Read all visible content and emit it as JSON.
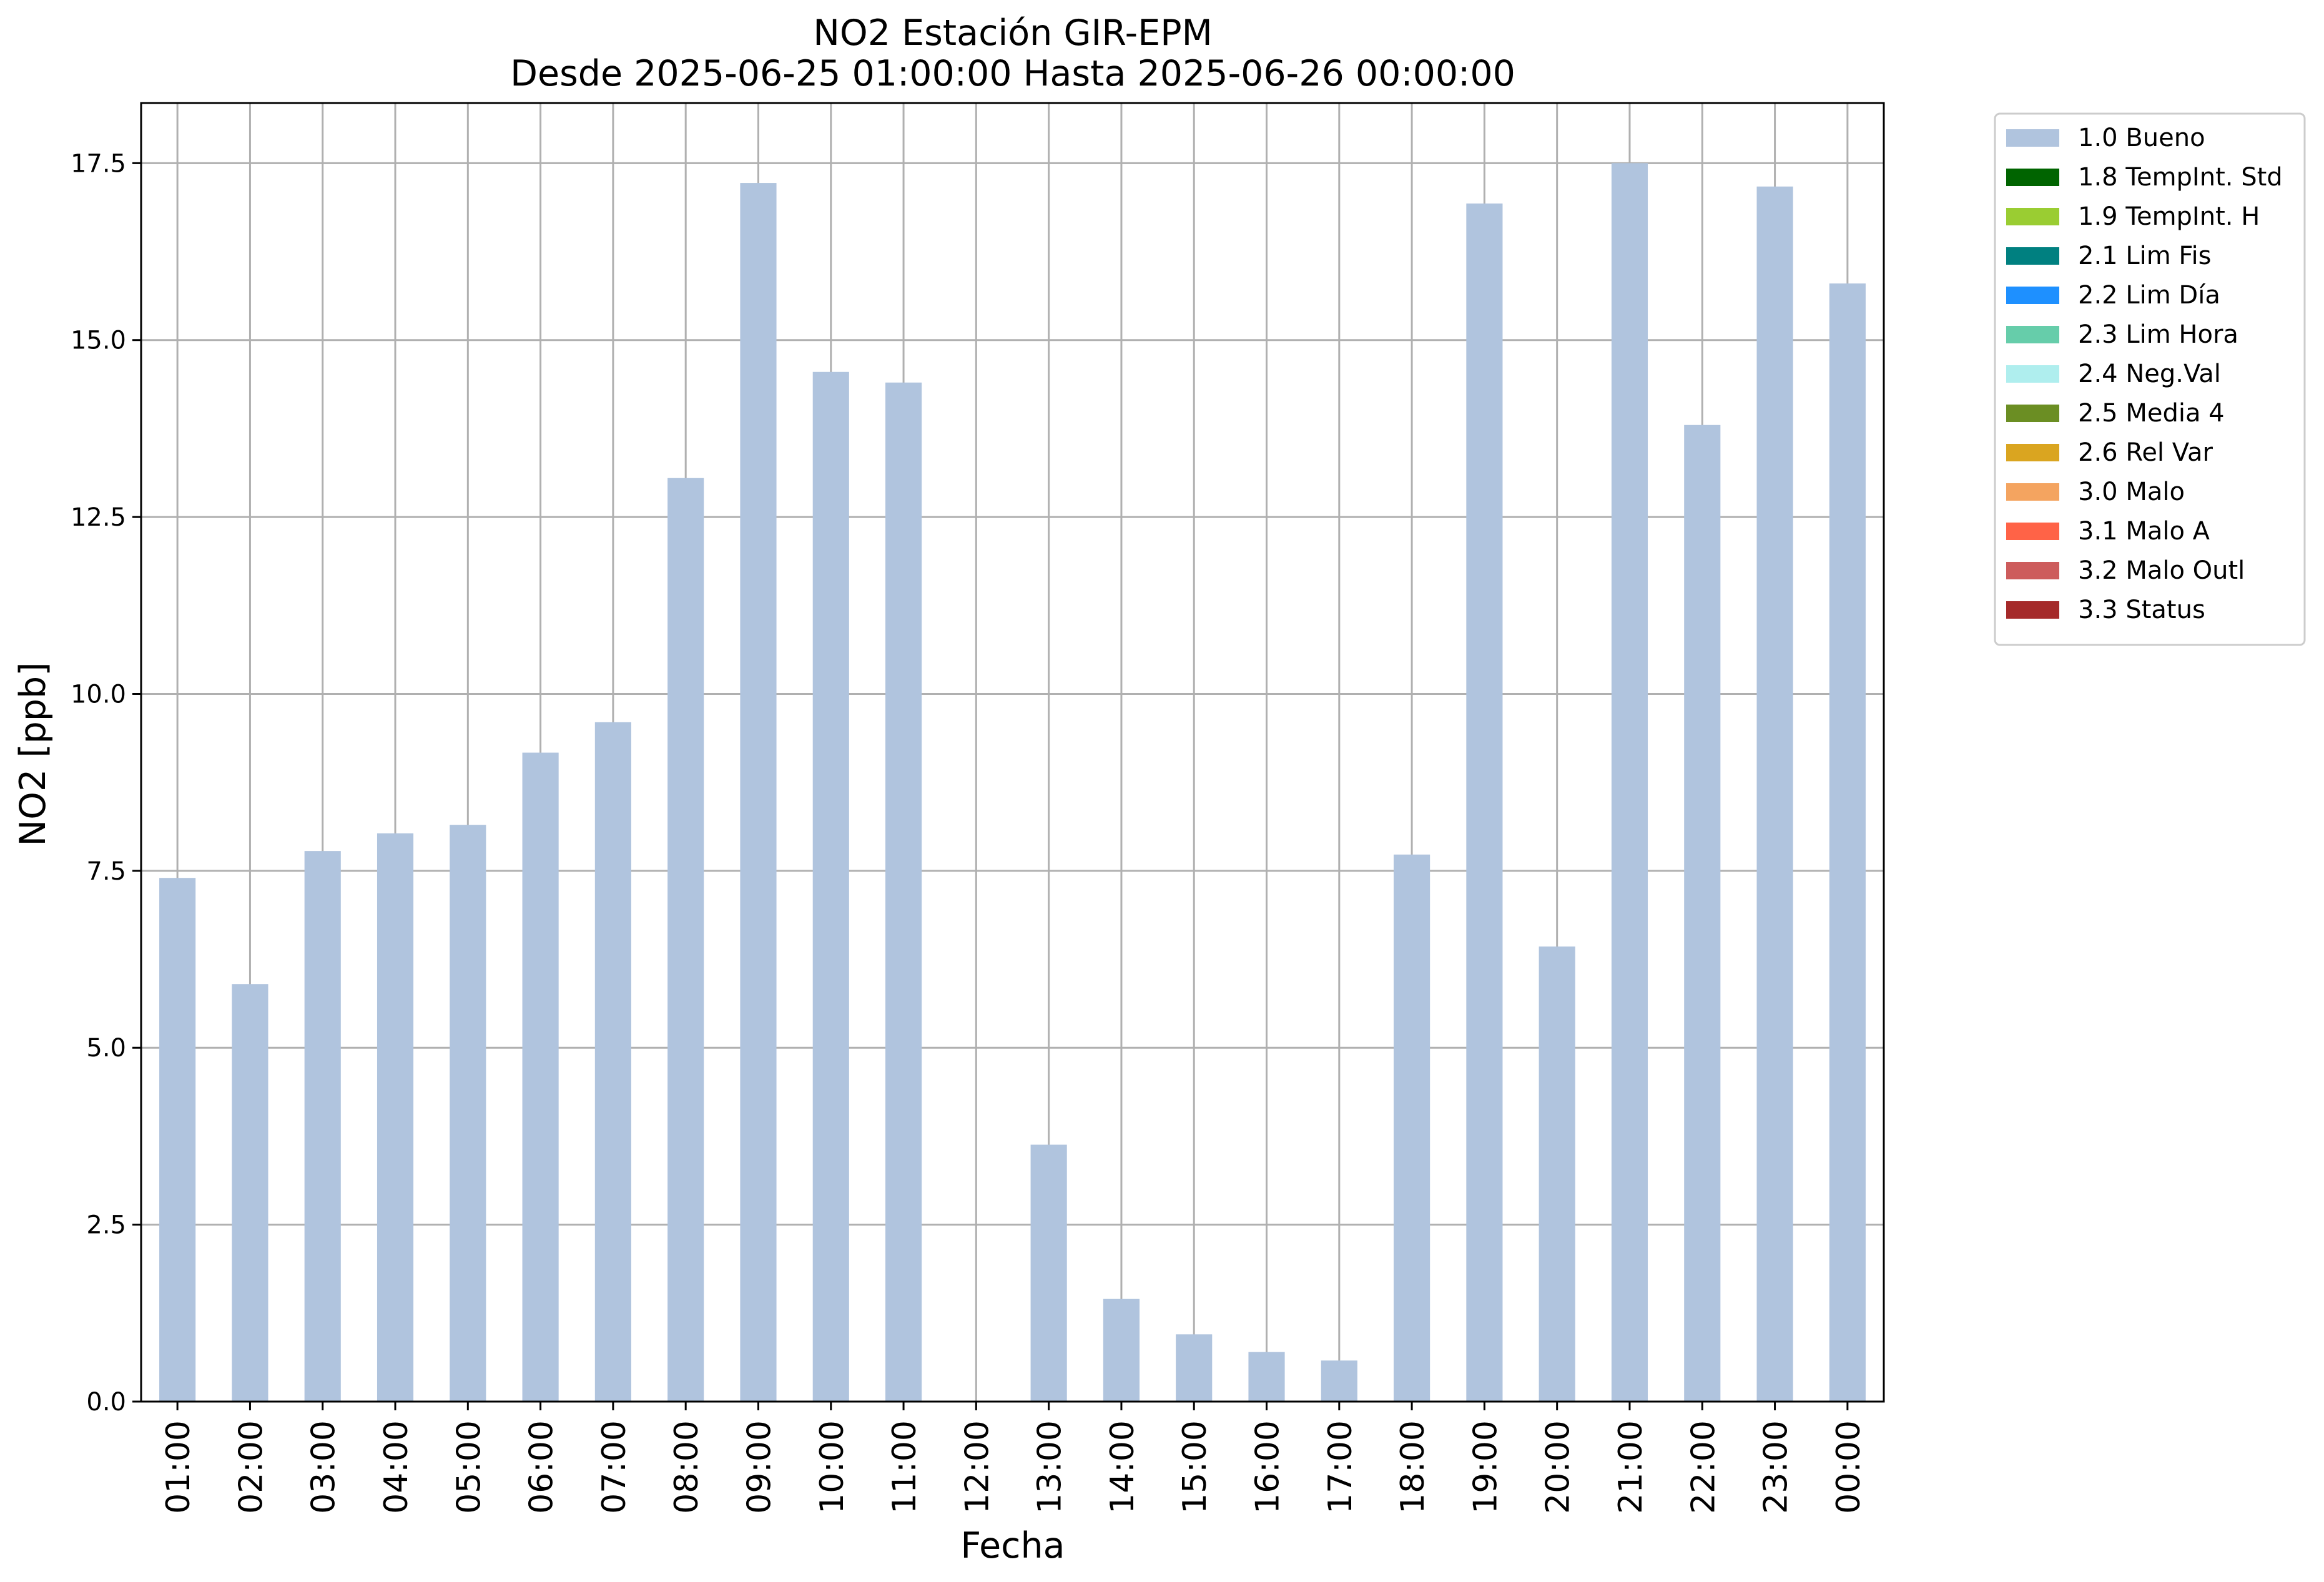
{
  "chart_data": {
    "type": "bar",
    "title": "NO2 Estación GIR-EPM",
    "subtitle": "Desde 2025-06-25 01:00:00 Hasta 2025-06-26 00:00:00",
    "xlabel": "Fecha",
    "ylabel": "NO2 [ppb]",
    "ylim": [
      0,
      18.35
    ],
    "yticks": [
      "0.0",
      "2.5",
      "5.0",
      "7.5",
      "10.0",
      "12.5",
      "15.0",
      "17.5"
    ],
    "grid": true,
    "legend_position": "outside-top-right",
    "categories": [
      "01:00",
      "02:00",
      "03:00",
      "04:00",
      "05:00",
      "06:00",
      "07:00",
      "08:00",
      "09:00",
      "10:00",
      "11:00",
      "12:00",
      "13:00",
      "14:00",
      "15:00",
      "16:00",
      "17:00",
      "18:00",
      "19:00",
      "20:00",
      "21:00",
      "22:00",
      "23:00",
      "00:00"
    ],
    "series": [
      {
        "name": "1.0 Bueno",
        "color": "#b0c4de",
        "values": [
          7.4,
          5.9,
          7.78,
          8.03,
          8.15,
          9.17,
          9.6,
          13.05,
          17.22,
          14.55,
          14.4,
          null,
          3.63,
          1.45,
          0.95,
          0.7,
          0.58,
          7.73,
          16.93,
          6.43,
          17.5,
          13.8,
          17.17,
          15.8
        ]
      }
    ],
    "legend": [
      {
        "label": "1.0 Bueno",
        "color": "#b0c4de"
      },
      {
        "label": "1.8 TempInt. Std",
        "color": "#006400"
      },
      {
        "label": "1.9 TempInt. H",
        "color": "#9acd32"
      },
      {
        "label": "2.1 Lim Fis",
        "color": "#008080"
      },
      {
        "label": "2.2 Lim Día",
        "color": "#1e90ff"
      },
      {
        "label": "2.3 Lim Hora",
        "color": "#66cdaa"
      },
      {
        "label": "2.4 Neg.Val",
        "color": "#afeeee"
      },
      {
        "label": "2.5 Media 4",
        "color": "#6b8e23"
      },
      {
        "label": "2.6 Rel Var",
        "color": "#daa520"
      },
      {
        "label": "3.0 Malo",
        "color": "#f4a460"
      },
      {
        "label": "3.1 Malo A",
        "color": "#ff6347"
      },
      {
        "label": "3.2 Malo Outl",
        "color": "#cd5c5c"
      },
      {
        "label": "3.3 Status",
        "color": "#a52a2a"
      }
    ]
  }
}
